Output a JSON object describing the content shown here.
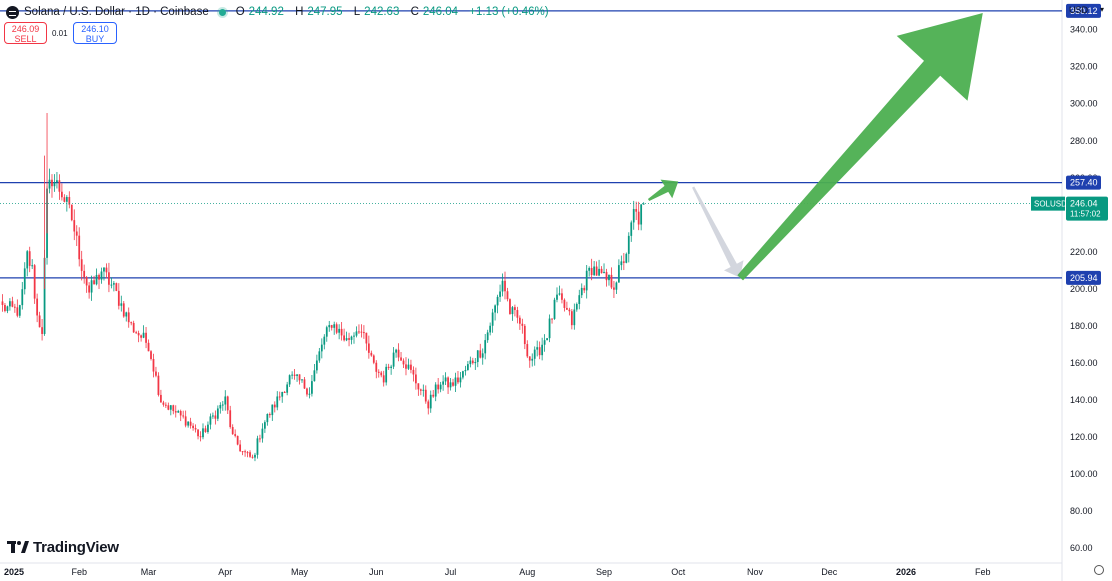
{
  "header": {
    "title": "Solana / U.S. Dollar · 1D · Coinbase",
    "ohlc": [
      {
        "key": "O",
        "value": "244.92"
      },
      {
        "key": "H",
        "value": "247.95"
      },
      {
        "key": "L",
        "value": "242.63"
      },
      {
        "key": "C",
        "value": "246.04"
      }
    ],
    "change": "+1.13 (+0.46%)",
    "live_color": "#22ab94"
  },
  "trade": {
    "sell_price": "246.09",
    "sell_label": "SELL",
    "spread": "0.01",
    "buy_price": "246.10",
    "buy_label": "BUY"
  },
  "currency": "USD",
  "brand": "TradingView",
  "icons": [
    "solana-symbol-icon",
    "tradingview-logo-icon",
    "settings-icon",
    "currency-caret-icon"
  ],
  "colors": {
    "up": "#089981",
    "down": "#f23645",
    "level_line": "#1e40af",
    "arrow_green": "#4caf50",
    "arrow_gray": "#d1d4dc",
    "price_badge": "#089981"
  },
  "chart_data": {
    "type": "candlestick",
    "symbol": "SOLUSD",
    "price_axis": {
      "ticks": [
        60,
        80,
        100,
        120,
        140,
        160,
        180,
        200,
        220,
        240,
        260,
        280,
        300,
        320,
        340
      ],
      "ylim": [
        52,
        356
      ]
    },
    "time_axis": {
      "labels": [
        "2025",
        "Feb",
        "Mar",
        "Apr",
        "May",
        "Jun",
        "Jul",
        "Aug",
        "Sep",
        "Oct",
        "Nov",
        "Dec",
        "2026",
        "Feb"
      ],
      "dates": [
        "2025-01-01",
        "2025-02-01",
        "2025-03-01",
        "2025-04-01",
        "2025-05-01",
        "2025-06-01",
        "2025-07-01",
        "2025-08-01",
        "2025-09-01",
        "2025-10-01",
        "2025-11-01",
        "2025-12-01",
        "2026-01-01",
        "2026-02-01"
      ],
      "xlim": [
        "2024-12-31",
        "2026-03-05"
      ]
    },
    "horizontal_levels": [
      {
        "value": 350.12,
        "label": "350.12"
      },
      {
        "value": 257.4,
        "label": "257.40"
      },
      {
        "value": 205.94,
        "label": "205.94"
      }
    ],
    "last_price": {
      "value": 246.04,
      "label": "246.04",
      "countdown": "11:57:02",
      "symbol": "SOLUSD"
    },
    "anchors": [
      {
        "date": "2025-01-01",
        "close": 190
      },
      {
        "date": "2025-01-08",
        "close": 188
      },
      {
        "date": "2025-01-11",
        "close": 218
      },
      {
        "date": "2025-01-13",
        "close": 210
      },
      {
        "date": "2025-01-15",
        "close": 185
      },
      {
        "date": "2025-01-17",
        "close": 178
      },
      {
        "date": "2025-01-19",
        "close": 250
      },
      {
        "date": "2025-01-21",
        "close": 260
      },
      {
        "date": "2025-01-25",
        "close": 252
      },
      {
        "date": "2025-01-29",
        "close": 238
      },
      {
        "date": "2025-02-02",
        "close": 213
      },
      {
        "date": "2025-02-05",
        "close": 198
      },
      {
        "date": "2025-02-10",
        "close": 210
      },
      {
        "date": "2025-02-15",
        "close": 200
      },
      {
        "date": "2025-02-22",
        "close": 180
      },
      {
        "date": "2025-03-01",
        "close": 170
      },
      {
        "date": "2025-03-06",
        "close": 140
      },
      {
        "date": "2025-03-12",
        "close": 133
      },
      {
        "date": "2025-03-17",
        "close": 128
      },
      {
        "date": "2025-03-22",
        "close": 120
      },
      {
        "date": "2025-03-27",
        "close": 131
      },
      {
        "date": "2025-04-01",
        "close": 140
      },
      {
        "date": "2025-04-04",
        "close": 120
      },
      {
        "date": "2025-04-08",
        "close": 112
      },
      {
        "date": "2025-04-12",
        "close": 108
      },
      {
        "date": "2025-04-16",
        "close": 126
      },
      {
        "date": "2025-04-22",
        "close": 140
      },
      {
        "date": "2025-04-27",
        "close": 152
      },
      {
        "date": "2025-05-01",
        "close": 150
      },
      {
        "date": "2025-05-05",
        "close": 145
      },
      {
        "date": "2025-05-10",
        "close": 170
      },
      {
        "date": "2025-05-14",
        "close": 182
      },
      {
        "date": "2025-05-20",
        "close": 172
      },
      {
        "date": "2025-05-25",
        "close": 180
      },
      {
        "date": "2025-05-31",
        "close": 158
      },
      {
        "date": "2025-06-04",
        "close": 152
      },
      {
        "date": "2025-06-09",
        "close": 168
      },
      {
        "date": "2025-06-12",
        "close": 162
      },
      {
        "date": "2025-06-17",
        "close": 150
      },
      {
        "date": "2025-06-22",
        "close": 138
      },
      {
        "date": "2025-06-27",
        "close": 150
      },
      {
        "date": "2025-07-01",
        "close": 148
      },
      {
        "date": "2025-07-05",
        "close": 152
      },
      {
        "date": "2025-07-09",
        "close": 160
      },
      {
        "date": "2025-07-14",
        "close": 168
      },
      {
        "date": "2025-07-19",
        "close": 190
      },
      {
        "date": "2025-07-22",
        "close": 205
      },
      {
        "date": "2025-07-25",
        "close": 188
      },
      {
        "date": "2025-07-29",
        "close": 182
      },
      {
        "date": "2025-08-02",
        "close": 162
      },
      {
        "date": "2025-08-05",
        "close": 165
      },
      {
        "date": "2025-08-09",
        "close": 176
      },
      {
        "date": "2025-08-13",
        "close": 195
      },
      {
        "date": "2025-08-16",
        "close": 190
      },
      {
        "date": "2025-08-19",
        "close": 182
      },
      {
        "date": "2025-08-23",
        "close": 200
      },
      {
        "date": "2025-08-27",
        "close": 212
      },
      {
        "date": "2025-09-01",
        "close": 205
      },
      {
        "date": "2025-09-05",
        "close": 203
      },
      {
        "date": "2025-09-08",
        "close": 212
      },
      {
        "date": "2025-09-11",
        "close": 225
      },
      {
        "date": "2025-09-13",
        "close": 241
      },
      {
        "date": "2025-09-15",
        "close": 238
      },
      {
        "date": "2025-09-17",
        "close": 246.04
      }
    ],
    "projection_arrows": [
      {
        "color": "green",
        "from": {
          "date": "2025-09-19",
          "value": 248
        },
        "to": {
          "date": "2025-10-01",
          "value": 258
        }
      },
      {
        "color": "gray",
        "from": {
          "date": "2025-10-07",
          "value": 255
        },
        "to": {
          "date": "2025-10-26",
          "value": 206
        }
      },
      {
        "color": "green",
        "from": {
          "date": "2025-10-26",
          "value": 206
        },
        "to": {
          "date": "2026-02-01",
          "value": 349
        }
      }
    ]
  }
}
